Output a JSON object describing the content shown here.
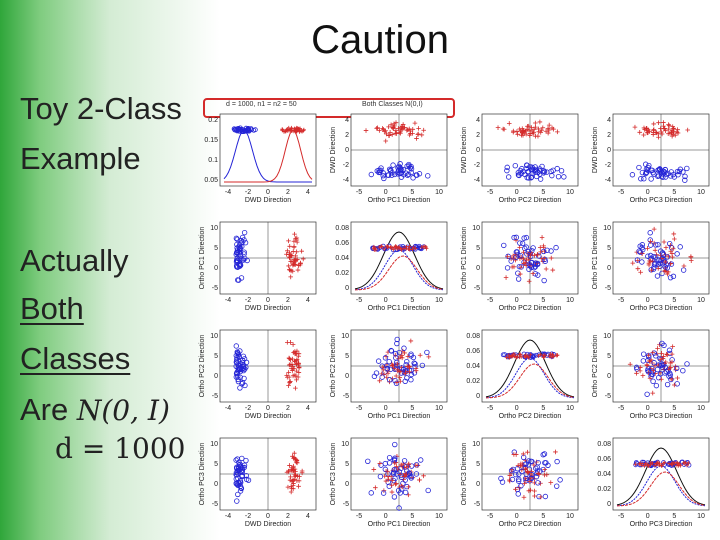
{
  "title": "Caution",
  "left_text": {
    "l1": "Toy 2-Class",
    "l2": "Example",
    "l3": "Actually",
    "l4": "Both",
    "l5": "Classes",
    "l6_prefix": "Are",
    "l6_math": "N(0, I)",
    "l7": "d = 1000"
  },
  "figure_header": {
    "params": "d = 1000, n1 = n2 = 50",
    "classes": "Both Classes N(0,I)"
  },
  "colors": {
    "class1": "#2424d6",
    "class2": "#d42a2a",
    "highlight_box": "#d42a2a"
  },
  "grid": {
    "cols": [
      "DWD Direction",
      "Ortho PC1 Direction",
      "Ortho PC2 Direction",
      "Ortho PC3 Direction"
    ],
    "rows": [
      "DWD Direction",
      "Ortho PC1 Direction",
      "Ortho PC2 Direction",
      "Ortho PC3 Direction"
    ],
    "y_labels": [
      [
        "",
        "DWD Direction",
        "DWD Direction",
        "DWD Direction"
      ],
      [
        "Ortho PC1 Direction",
        "",
        "Ortho PC1 Direction",
        "Ortho PC1 Direction"
      ],
      [
        "Ortho PC2 Direction",
        "Ortho PC2 Direction",
        "",
        "Ortho PC2 Direction"
      ],
      [
        "Ortho PC3 Direction",
        "Ortho PC3 Direction",
        "Ortho PC3 Direction",
        ""
      ]
    ],
    "x_ticks": {
      "dwd": [
        "-4",
        "-2",
        "0",
        "2",
        "4"
      ],
      "pc": [
        "-5",
        "0",
        "5",
        "10"
      ]
    },
    "density_y_ticks": {
      "dwd": [
        "0.2",
        "0.15",
        "0.1",
        "0.05"
      ],
      "pc": [
        "0.08",
        "0.06",
        "0.04",
        "0.02",
        "0"
      ]
    },
    "scatter_y_ticks": {
      "dwd": [
        "4",
        "2",
        "0",
        "-2",
        "-4"
      ],
      "pc": [
        "10",
        "5",
        "0",
        "-5"
      ]
    }
  },
  "chart_data": {
    "type": "scatter",
    "description": "Scatterplot matrix: diagonal shows 1-D projections with density curves, off-diagonal shows 2-D scatterplots of two classes (blue circles, red plus signs)",
    "series": [
      {
        "name": "",
        "marker": "circle",
        "color": "#2424d6"
      },
      {
        "name": "",
        "marker": "plus",
        "color": "#d42a2a"
      }
    ]
  }
}
